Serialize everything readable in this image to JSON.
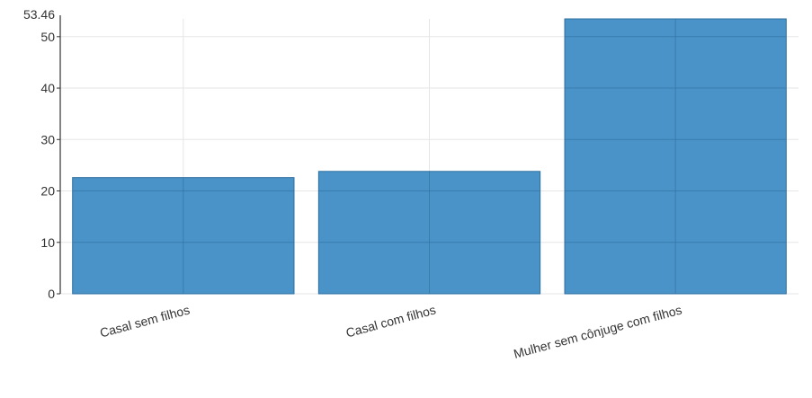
{
  "chart_data": {
    "type": "bar",
    "categories": [
      "Casal sem filhos",
      "Casal com filhos",
      "Mulher sem cônjuge com filhos"
    ],
    "values": [
      22.6,
      23.8,
      53.46
    ],
    "ylim": [
      0,
      53.46
    ],
    "yticks": [
      0,
      10,
      20,
      30,
      40,
      50
    ],
    "y_top_label": "53.46",
    "grid": true,
    "colors": {
      "bar": "#4a93c8",
      "bar_edge": "#2e6fa0",
      "grid": "#e6e6e6",
      "axis": "#333333"
    }
  }
}
